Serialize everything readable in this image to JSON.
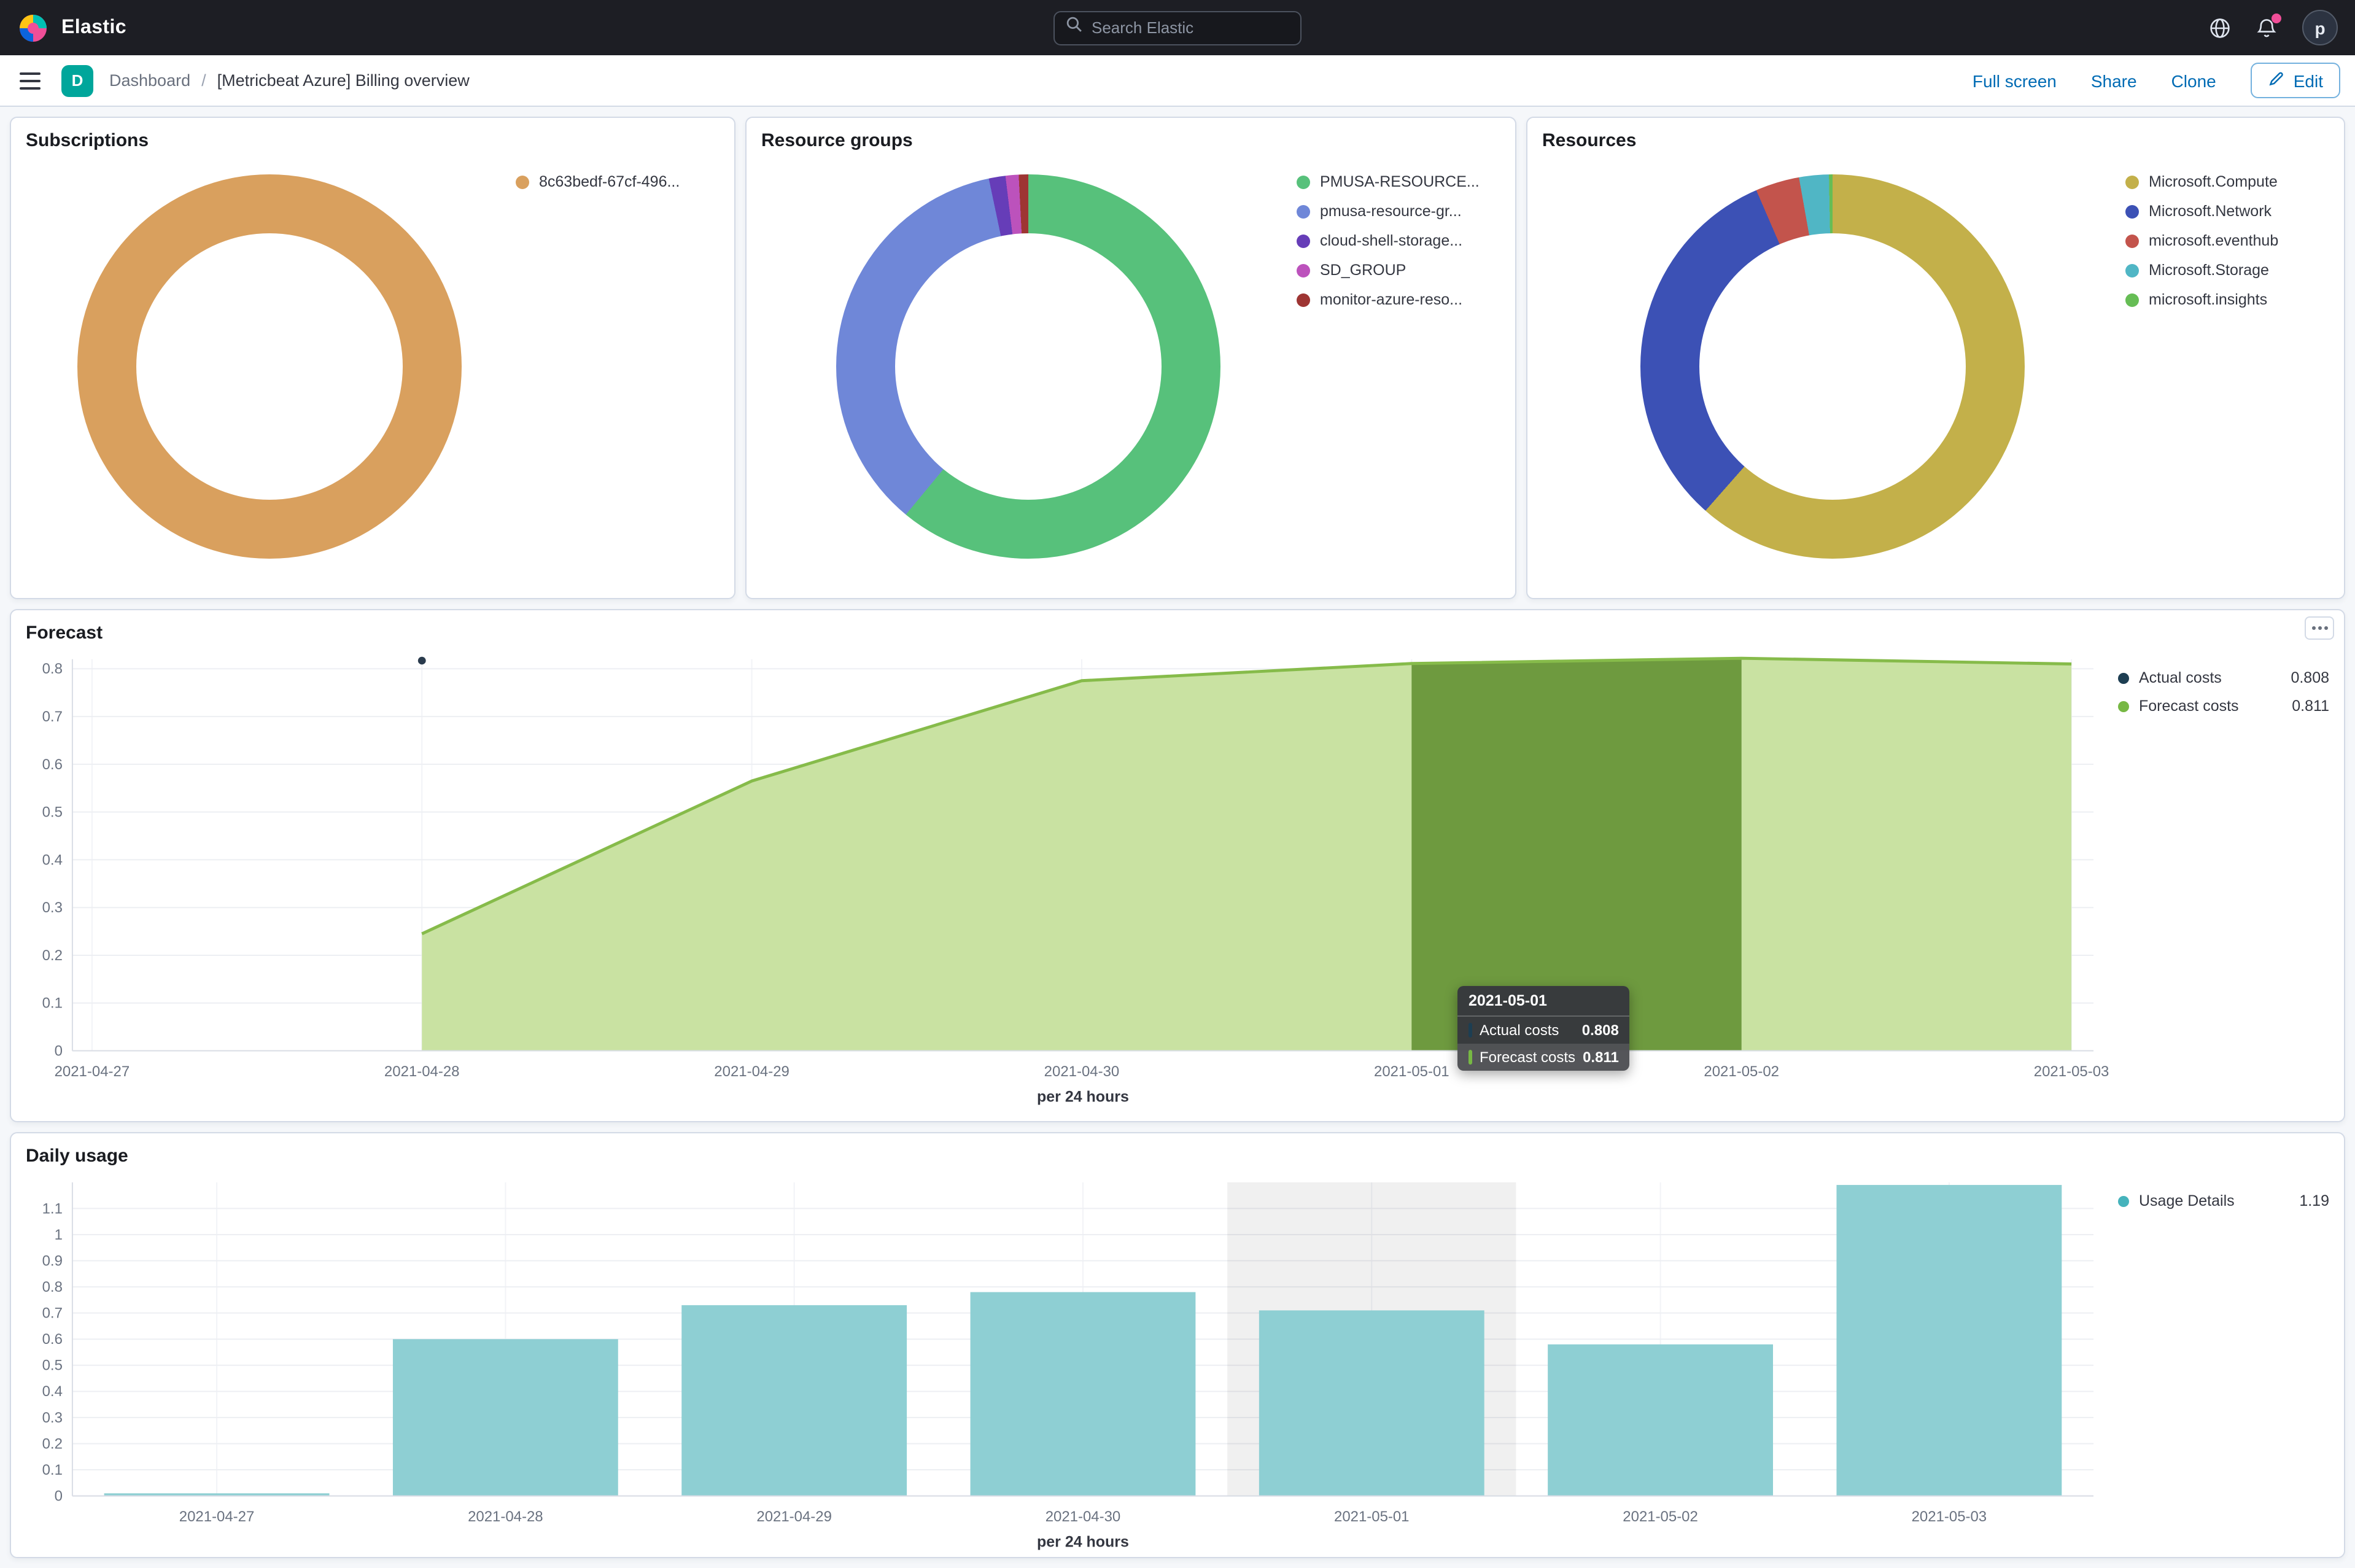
{
  "header": {
    "brand": "Elastic",
    "search_placeholder": "Search Elastic",
    "avatar_initial": "p"
  },
  "toolbar": {
    "space_badge": "D",
    "breadcrumb_root": "Dashboard",
    "breadcrumb_sep": "/",
    "page_title": "[Metricbeat Azure] Billing overview",
    "full_screen": "Full screen",
    "share": "Share",
    "clone": "Clone",
    "edit": "Edit"
  },
  "subscriptions": {
    "title": "Subscriptions",
    "legend": [
      {
        "label": "8c63bedf-67cf-496...",
        "color": "#d9a05e"
      }
    ],
    "slices": [
      {
        "label": "8c63bedf-67cf-496...",
        "color": "#d9a05e",
        "pct": 100
      }
    ]
  },
  "resource_groups": {
    "title": "Resource groups",
    "legend": [
      {
        "label": "PMUSA-RESOURCE...",
        "color": "#57c17b"
      },
      {
        "label": "pmusa-resource-gr...",
        "color": "#6f87d8"
      },
      {
        "label": "cloud-shell-storage...",
        "color": "#663db8"
      },
      {
        "label": "SD_GROUP",
        "color": "#bc52bc"
      },
      {
        "label": "monitor-azure-reso...",
        "color": "#9e3533"
      }
    ],
    "slices": [
      {
        "label": "PMUSA-RESOURCE...",
        "color": "#57c17b",
        "pct": 61
      },
      {
        "label": "pmusa-resource-gr...",
        "color": "#6f87d8",
        "pct": 35.7
      },
      {
        "label": "cloud-shell-storage...",
        "color": "#663db8",
        "pct": 1.4
      },
      {
        "label": "SD_GROUP",
        "color": "#bc52bc",
        "pct": 1.1
      },
      {
        "label": "monitor-azure-reso...",
        "color": "#9e3533",
        "pct": 0.8
      }
    ]
  },
  "resources": {
    "title": "Resources",
    "legend": [
      {
        "label": "Microsoft.Compute",
        "color": "#c3b04a"
      },
      {
        "label": "Microsoft.Network",
        "color": "#3c51b5"
      },
      {
        "label": "microsoft.eventhub",
        "color": "#c3544c"
      },
      {
        "label": "Microsoft.Storage",
        "color": "#50b6c5"
      },
      {
        "label": "microsoft.insights",
        "color": "#66bd55"
      }
    ],
    "slices": [
      {
        "label": "Microsoft.Compute",
        "color": "#c3b04a",
        "pct": 61.5
      },
      {
        "label": "Microsoft.Network",
        "color": "#3c51b5",
        "pct": 32
      },
      {
        "label": "microsoft.eventhub",
        "color": "#c3544c",
        "pct": 3.7
      },
      {
        "label": "Microsoft.Storage",
        "color": "#50b6c5",
        "pct": 2.5
      },
      {
        "label": "microsoft.insights",
        "color": "#66bd55",
        "pct": 0.3
      }
    ]
  },
  "forecast": {
    "title": "Forecast",
    "xlabel": "per 24 hours",
    "x_ticks": [
      "2021-04-27",
      "2021-04-28",
      "2021-04-29",
      "2021-04-30",
      "2021-05-01",
      "2021-05-02",
      "2021-05-03"
    ],
    "y_ticks": [
      "0",
      "0.1",
      "0.2",
      "0.3",
      "0.4",
      "0.5",
      "0.6",
      "0.7",
      "0.8"
    ],
    "y_max": 0.82,
    "area_color": "#c9e2a2",
    "band_color": "#6e9a3f",
    "line_color": "#86bb4a",
    "points": [
      [
        1,
        0.245
      ],
      [
        2,
        0.565
      ],
      [
        3,
        0.775
      ],
      [
        4,
        0.811
      ],
      [
        5,
        0.822
      ],
      [
        6,
        0.81
      ]
    ],
    "band_days": [
      4,
      5
    ],
    "marker": {
      "day": 1,
      "value": 0.817,
      "color": "#2a3b4d"
    },
    "legend": [
      {
        "label": "Actual costs",
        "value": "0.808",
        "color": "#1d3e52"
      },
      {
        "label": "Forecast costs",
        "value": "0.811",
        "color": "#77b844"
      }
    ],
    "tooltip": {
      "header": "2021-05-01",
      "rows": [
        {
          "label": "Actual costs",
          "value": "0.808",
          "color": "#1d3e52"
        },
        {
          "label": "Forecast costs",
          "value": "0.811",
          "color": "#77b844"
        }
      ]
    }
  },
  "daily_usage": {
    "title": "Daily usage",
    "xlabel": "per 24 hours",
    "x_ticks": [
      "2021-04-27",
      "2021-04-28",
      "2021-04-29",
      "2021-04-30",
      "2021-05-01",
      "2021-05-02",
      "2021-05-03"
    ],
    "y_ticks": [
      "0",
      "0.1",
      "0.2",
      "0.3",
      "0.4",
      "0.5",
      "0.6",
      "0.7",
      "0.8",
      "0.9",
      "1",
      "1.1"
    ],
    "y_max": 1.2,
    "bar_color": "#8ecfd3",
    "highlight_day": 4,
    "values": [
      0.01,
      0.6,
      0.73,
      0.78,
      0.71,
      0.58,
      1.19
    ],
    "legend": [
      {
        "label": "Usage Details",
        "value": "1.19",
        "color": "#45b3bc"
      }
    ]
  },
  "chart_data": [
    {
      "type": "pie",
      "title": "Subscriptions",
      "labels": [
        "8c63bedf-67cf-496..."
      ],
      "values": [
        100
      ]
    },
    {
      "type": "pie",
      "title": "Resource groups",
      "labels": [
        "PMUSA-RESOURCE...",
        "pmusa-resource-gr...",
        "cloud-shell-storage...",
        "SD_GROUP",
        "monitor-azure-reso..."
      ],
      "values": [
        61,
        35.7,
        1.4,
        1.1,
        0.8
      ]
    },
    {
      "type": "pie",
      "title": "Resources",
      "labels": [
        "Microsoft.Compute",
        "Microsoft.Network",
        "microsoft.eventhub",
        "Microsoft.Storage",
        "microsoft.insights"
      ],
      "values": [
        61.5,
        32,
        3.7,
        2.5,
        0.3
      ]
    },
    {
      "type": "area",
      "title": "Forecast",
      "x": [
        "2021-04-28",
        "2021-04-29",
        "2021-04-30",
        "2021-05-01",
        "2021-05-02",
        "2021-05-03"
      ],
      "series": [
        {
          "name": "Forecast costs",
          "values": [
            0.245,
            0.565,
            0.775,
            0.811,
            0.822,
            0.81
          ]
        },
        {
          "name": "Actual costs",
          "values": [
            null,
            null,
            null,
            0.808,
            null,
            null
          ]
        }
      ],
      "xlabel": "per 24 hours",
      "ylabel": "",
      "ylim": [
        0,
        0.8
      ],
      "legend_position": "right",
      "grid": true
    },
    {
      "type": "bar",
      "title": "Daily usage",
      "series_name": "Usage Details",
      "categories": [
        "2021-04-27",
        "2021-04-28",
        "2021-04-29",
        "2021-04-30",
        "2021-05-01",
        "2021-05-02",
        "2021-05-03"
      ],
      "values": [
        0.01,
        0.6,
        0.73,
        0.78,
        0.71,
        0.58,
        1.19
      ],
      "xlabel": "per 24 hours",
      "ylabel": "",
      "ylim": [
        0,
        1.1
      ],
      "legend_position": "right",
      "grid": true
    }
  ]
}
